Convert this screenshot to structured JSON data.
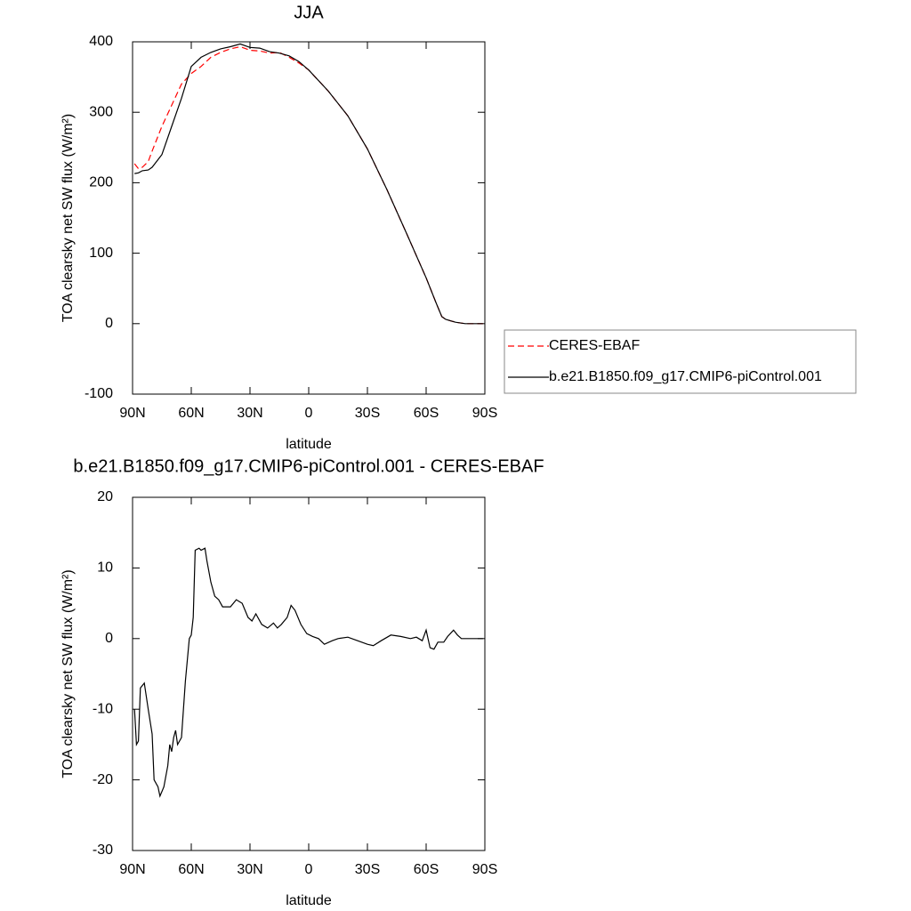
{
  "chart_data": [
    {
      "type": "line",
      "title": "JJA",
      "xlabel": "latitude",
      "ylabel": "TOA clearsky net SW flux (W/m²)",
      "x": [
        89,
        87,
        85,
        82,
        80,
        75,
        70,
        65,
        60,
        55,
        50,
        45,
        40,
        35,
        30,
        25,
        20,
        15,
        10,
        5,
        0,
        -10,
        -20,
        -30,
        -40,
        -50,
        -60,
        -65,
        -68,
        -70,
        -75,
        -80,
        -89
      ],
      "series": [
        {
          "name": "CERES-EBAF",
          "color": "#ff0000",
          "linestyle": "dashed",
          "values": [
            227,
            220,
            222,
            230,
            245,
            280,
            310,
            340,
            355,
            365,
            378,
            385,
            390,
            393,
            388,
            387,
            384,
            385,
            378,
            370,
            360,
            330,
            295,
            248,
            190,
            128,
            65,
            30,
            10,
            6,
            2,
            0,
            0
          ]
        },
        {
          "name": "b.e21.B1850.f09_g17.CMIP6-piControl.001",
          "color": "#000000",
          "linestyle": "solid",
          "values": [
            213,
            214,
            217,
            218,
            222,
            240,
            280,
            320,
            365,
            378,
            385,
            390,
            393,
            397,
            392,
            391,
            386,
            384,
            380,
            372,
            360,
            330,
            295,
            248,
            190,
            128,
            65,
            30,
            10,
            6,
            2,
            0,
            0
          ]
        }
      ],
      "xlim": [
        90,
        -90
      ],
      "xticks": [
        {
          "value": 90,
          "label": "90N"
        },
        {
          "value": 60,
          "label": "60N"
        },
        {
          "value": 30,
          "label": "30N"
        },
        0,
        {
          "value": -30,
          "label": "30S"
        },
        {
          "value": -60,
          "label": "60S"
        },
        {
          "value": -90,
          "label": "90S"
        }
      ],
      "ylim": [
        -100,
        400
      ],
      "yticks": [
        -100,
        0,
        100,
        200,
        300,
        400
      ],
      "legend": "outside-right"
    },
    {
      "type": "line",
      "title": "b.e21.B1850.f09_g17.CMIP6-piControl.001 - CERES-EBAF",
      "xlabel": "latitude",
      "ylabel": "TOA clearsky net SW flux (W/m²)",
      "x": [
        89,
        88,
        87,
        86,
        84,
        82,
        80,
        79,
        77,
        76,
        74,
        72,
        71,
        70,
        69,
        68,
        67,
        65,
        64,
        63,
        61,
        60,
        59,
        58,
        56,
        55,
        53,
        52,
        50,
        48,
        46,
        44,
        40,
        37,
        34,
        31,
        29,
        27,
        24,
        21,
        18,
        16,
        14,
        11,
        9,
        7,
        4,
        1,
        -2,
        -5,
        -8,
        -12,
        -15,
        -20,
        -25,
        -30,
        -33,
        -37,
        -42,
        -47,
        -52,
        -55,
        -58,
        -60,
        -62,
        -64,
        -66,
        -69,
        -71,
        -74,
        -76,
        -78,
        -89
      ],
      "series": [
        {
          "color": "#000000",
          "linestyle": "solid",
          "values": [
            -10,
            -15,
            -14.5,
            -7,
            -6.3,
            -10,
            -13.5,
            -20,
            -21,
            -22.3,
            -21,
            -18,
            -15,
            -16,
            -14,
            -13,
            -15,
            -14,
            -10,
            -6,
            0,
            0.5,
            3,
            12.5,
            12.8,
            12.5,
            12.8,
            11,
            8,
            6,
            5.5,
            4.5,
            4.5,
            5.5,
            5,
            3,
            2.5,
            3.5,
            2,
            1.5,
            2.2,
            1.5,
            2,
            3,
            4.7,
            4,
            2,
            0.7,
            0.3,
            0,
            -0.8,
            -0.3,
            0,
            0.2,
            -0.3,
            -0.8,
            -1,
            -0.3,
            0.5,
            0.3,
            0,
            0.2,
            -0.3,
            1.2,
            -1.3,
            -1.5,
            -0.5,
            -0.5,
            0.3,
            1.2,
            0.5,
            0,
            0
          ]
        }
      ],
      "xlim": [
        90,
        -90
      ],
      "xticks": [
        {
          "value": 90,
          "label": "90N"
        },
        {
          "value": 60,
          "label": "60N"
        },
        {
          "value": 30,
          "label": "30N"
        },
        0,
        {
          "value": -30,
          "label": "30S"
        },
        {
          "value": -60,
          "label": "60S"
        },
        {
          "value": -90,
          "label": "90S"
        }
      ],
      "ylim": [
        -30,
        20
      ],
      "yticks": [
        -30,
        -20,
        -10,
        0,
        10,
        20
      ]
    }
  ]
}
